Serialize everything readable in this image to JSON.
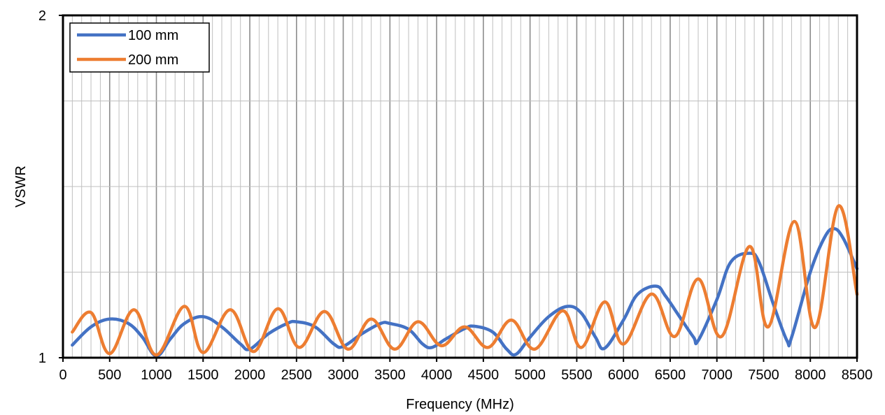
{
  "chart_data": {
    "type": "line",
    "title": "",
    "xlabel": "Frequency (MHz)",
    "ylabel": "VSWR",
    "xlim": [
      0,
      8500
    ],
    "ylim": [
      1,
      2
    ],
    "x_ticks": [
      0,
      500,
      1000,
      1500,
      2000,
      2500,
      3000,
      3500,
      4000,
      4500,
      5000,
      5500,
      6000,
      6500,
      7000,
      7500,
      8000,
      8500
    ],
    "x_tick_labels": [
      "0",
      "500",
      "1000",
      "1500",
      "2000",
      "2500",
      "3000",
      "3500",
      "4000",
      "4500",
      "5000",
      "5500",
      "6000",
      "6500",
      "7000",
      "7500",
      "8000",
      "8500"
    ],
    "y_tick_labels": [
      "1",
      "2"
    ],
    "y_ticks": [
      1,
      2
    ],
    "grid": "on",
    "legend_position": "top-left",
    "series": [
      {
        "name": "100 mm",
        "color": "#4472C4",
        "points": [
          [
            100,
            1.037
          ],
          [
            300,
            1.09
          ],
          [
            500,
            1.113
          ],
          [
            700,
            1.1
          ],
          [
            850,
            1.06
          ],
          [
            1000,
            1.005
          ],
          [
            1150,
            1.055
          ],
          [
            1300,
            1.1
          ],
          [
            1500,
            1.12
          ],
          [
            1700,
            1.09
          ],
          [
            1900,
            1.04
          ],
          [
            2000,
            1.025
          ],
          [
            2200,
            1.07
          ],
          [
            2400,
            1.1
          ],
          [
            2500,
            1.105
          ],
          [
            2700,
            1.09
          ],
          [
            2900,
            1.04
          ],
          [
            3000,
            1.033
          ],
          [
            3200,
            1.07
          ],
          [
            3400,
            1.1
          ],
          [
            3500,
            1.1
          ],
          [
            3700,
            1.083
          ],
          [
            3850,
            1.04
          ],
          [
            3950,
            1.03
          ],
          [
            4100,
            1.055
          ],
          [
            4300,
            1.085
          ],
          [
            4400,
            1.092
          ],
          [
            4600,
            1.075
          ],
          [
            4750,
            1.025
          ],
          [
            4850,
            1.01
          ],
          [
            5000,
            1.06
          ],
          [
            5200,
            1.12
          ],
          [
            5400,
            1.15
          ],
          [
            5550,
            1.13
          ],
          [
            5700,
            1.06
          ],
          [
            5800,
            1.028
          ],
          [
            6000,
            1.11
          ],
          [
            6150,
            1.185
          ],
          [
            6350,
            1.209
          ],
          [
            6450,
            1.18
          ],
          [
            6600,
            1.12
          ],
          [
            6750,
            1.06
          ],
          [
            6800,
            1.05
          ],
          [
            7000,
            1.17
          ],
          [
            7150,
            1.28
          ],
          [
            7350,
            1.305
          ],
          [
            7450,
            1.28
          ],
          [
            7600,
            1.16
          ],
          [
            7750,
            1.05
          ],
          [
            7800,
            1.06
          ],
          [
            8000,
            1.25
          ],
          [
            8150,
            1.35
          ],
          [
            8250,
            1.377
          ],
          [
            8350,
            1.35
          ],
          [
            8500,
            1.26
          ]
        ]
      },
      {
        "name": "200 mm",
        "color": "#ED7D31",
        "points": [
          [
            100,
            1.075
          ],
          [
            300,
            1.132
          ],
          [
            500,
            1.012
          ],
          [
            760,
            1.14
          ],
          [
            1000,
            1.008
          ],
          [
            1300,
            1.15
          ],
          [
            1500,
            1.015
          ],
          [
            1790,
            1.14
          ],
          [
            2040,
            1.018
          ],
          [
            2300,
            1.143
          ],
          [
            2530,
            1.03
          ],
          [
            2800,
            1.135
          ],
          [
            3050,
            1.025
          ],
          [
            3300,
            1.113
          ],
          [
            3550,
            1.025
          ],
          [
            3800,
            1.105
          ],
          [
            4050,
            1.035
          ],
          [
            4300,
            1.09
          ],
          [
            4550,
            1.03
          ],
          [
            4800,
            1.11
          ],
          [
            5050,
            1.025
          ],
          [
            5350,
            1.137
          ],
          [
            5550,
            1.03
          ],
          [
            5800,
            1.163
          ],
          [
            6000,
            1.04
          ],
          [
            6300,
            1.186
          ],
          [
            6550,
            1.062
          ],
          [
            6800,
            1.23
          ],
          [
            7050,
            1.062
          ],
          [
            7350,
            1.325
          ],
          [
            7550,
            1.09
          ],
          [
            7830,
            1.398
          ],
          [
            8050,
            1.088
          ],
          [
            8300,
            1.443
          ],
          [
            8500,
            1.185
          ]
        ]
      }
    ]
  }
}
